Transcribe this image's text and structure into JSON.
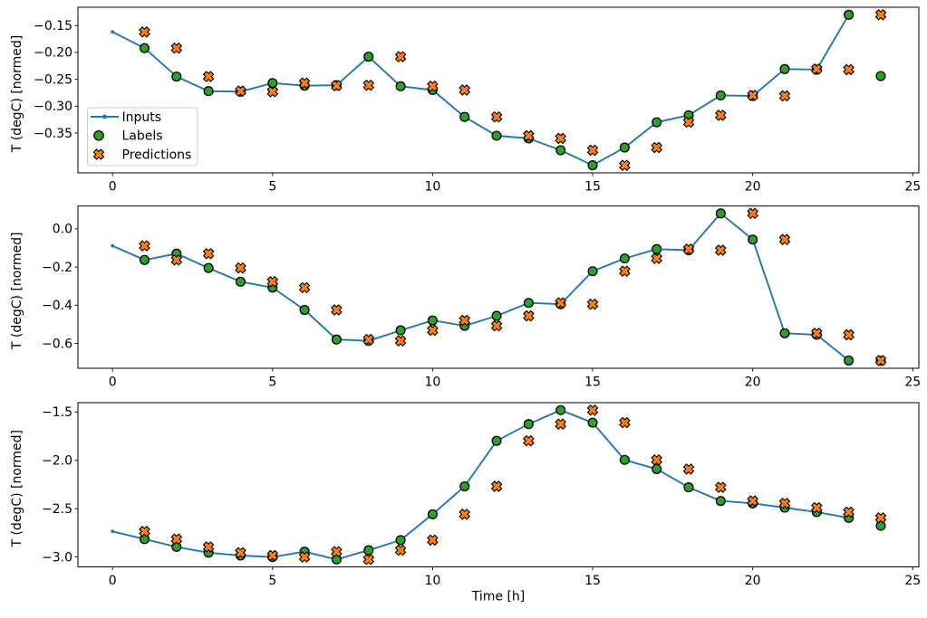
{
  "figure": {
    "xlabel": "Time [h]",
    "background": "#ffffff",
    "legend": {
      "items": [
        {
          "label": "Inputs",
          "handle": "line-dot",
          "color": "#1f77b4"
        },
        {
          "label": "Labels",
          "handle": "circle",
          "color": "#2ca02c"
        },
        {
          "label": "Predictions",
          "handle": "x-marker",
          "color": "#ff7f0e"
        }
      ],
      "border_color": "#cccccc",
      "background": "#ffffff"
    }
  },
  "chart_data": [
    {
      "type": "line+scatter",
      "ylabel": "T (degC) [normed]",
      "ytick_values": [
        -0.15,
        -0.2,
        -0.25,
        -0.3,
        -0.35
      ],
      "ytick_labels": [
        "−0.15",
        "−0.20",
        "−0.25",
        "−0.30",
        "−0.35"
      ],
      "xtick_values": [
        0,
        5,
        10,
        15,
        20,
        25
      ],
      "xtick_labels": [
        "0",
        "5",
        "10",
        "15",
        "20",
        "25"
      ],
      "series": [
        {
          "name": "Inputs",
          "type": "line",
          "marker": "dot",
          "color": "#1f77b4",
          "x": [
            0,
            1,
            2,
            3,
            4,
            5,
            6,
            7,
            8,
            9,
            10,
            11,
            12,
            13,
            14,
            15,
            16,
            17,
            18,
            19,
            20,
            21,
            22,
            23
          ],
          "y": [
            -0.162,
            -0.192,
            -0.245,
            -0.272,
            -0.273,
            -0.257,
            -0.262,
            -0.261,
            -0.208,
            -0.263,
            -0.27,
            -0.32,
            -0.355,
            -0.36,
            -0.382,
            -0.41,
            -0.377,
            -0.33,
            -0.317,
            -0.28,
            -0.281,
            -0.231,
            -0.232,
            -0.13
          ]
        },
        {
          "name": "Labels",
          "type": "scatter",
          "marker": "circle",
          "color": "#2ca02c",
          "x": [
            1,
            2,
            3,
            4,
            5,
            6,
            7,
            8,
            9,
            10,
            11,
            12,
            13,
            14,
            15,
            16,
            17,
            18,
            19,
            20,
            21,
            22,
            23,
            24
          ],
          "y": [
            -0.192,
            -0.245,
            -0.272,
            -0.273,
            -0.257,
            -0.262,
            -0.261,
            -0.208,
            -0.263,
            -0.27,
            -0.32,
            -0.355,
            -0.36,
            -0.382,
            -0.41,
            -0.377,
            -0.33,
            -0.317,
            -0.28,
            -0.281,
            -0.231,
            -0.232,
            -0.13,
            -0.244
          ]
        },
        {
          "name": "Predictions",
          "type": "scatter",
          "marker": "X",
          "color": "#ff7f0e",
          "x": [
            1,
            2,
            3,
            4,
            5,
            6,
            7,
            8,
            9,
            10,
            11,
            12,
            13,
            14,
            15,
            16,
            17,
            18,
            19,
            20,
            21,
            22,
            23,
            24
          ],
          "y": [
            -0.162,
            -0.192,
            -0.245,
            -0.272,
            -0.273,
            -0.257,
            -0.262,
            -0.261,
            -0.208,
            -0.263,
            -0.27,
            -0.32,
            -0.355,
            -0.36,
            -0.382,
            -0.41,
            -0.377,
            -0.33,
            -0.317,
            -0.28,
            -0.281,
            -0.231,
            -0.232,
            -0.13
          ]
        }
      ]
    },
    {
      "type": "line+scatter",
      "ylabel": "T (degC) [normed]",
      "ytick_values": [
        0.0,
        -0.2,
        -0.4,
        -0.6
      ],
      "ytick_labels": [
        "0.0",
        "−0.2",
        "−0.4",
        "−0.6"
      ],
      "xtick_values": [
        0,
        5,
        10,
        15,
        20,
        25
      ],
      "xtick_labels": [
        "0",
        "5",
        "10",
        "15",
        "20",
        "25"
      ],
      "series": [
        {
          "name": "Inputs",
          "type": "line",
          "marker": "dot",
          "color": "#1f77b4",
          "x": [
            0,
            1,
            2,
            3,
            4,
            5,
            6,
            7,
            8,
            9,
            10,
            11,
            12,
            13,
            14,
            15,
            16,
            17,
            18,
            19,
            20,
            21,
            22,
            23
          ],
          "y": [
            -0.089,
            -0.163,
            -0.13,
            -0.205,
            -0.277,
            -0.308,
            -0.425,
            -0.58,
            -0.587,
            -0.532,
            -0.48,
            -0.508,
            -0.456,
            -0.388,
            -0.395,
            -0.222,
            -0.155,
            -0.106,
            -0.112,
            0.081,
            -0.056,
            -0.547,
            -0.555,
            -0.69
          ]
        },
        {
          "name": "Labels",
          "type": "scatter",
          "marker": "circle",
          "color": "#2ca02c",
          "x": [
            1,
            2,
            3,
            4,
            5,
            6,
            7,
            8,
            9,
            10,
            11,
            12,
            13,
            14,
            15,
            16,
            17,
            18,
            19,
            20,
            21,
            22,
            23,
            24
          ],
          "y": [
            -0.163,
            -0.13,
            -0.205,
            -0.277,
            -0.308,
            -0.425,
            -0.58,
            -0.587,
            -0.532,
            -0.48,
            -0.508,
            -0.456,
            -0.388,
            -0.395,
            -0.222,
            -0.155,
            -0.106,
            -0.112,
            0.081,
            -0.056,
            -0.547,
            -0.555,
            -0.69,
            -0.692
          ]
        },
        {
          "name": "Predictions",
          "type": "scatter",
          "marker": "X",
          "color": "#ff7f0e",
          "x": [
            1,
            2,
            3,
            4,
            5,
            6,
            7,
            8,
            9,
            10,
            11,
            12,
            13,
            14,
            15,
            16,
            17,
            18,
            19,
            20,
            21,
            22,
            23,
            24
          ],
          "y": [
            -0.089,
            -0.163,
            -0.13,
            -0.205,
            -0.277,
            -0.308,
            -0.425,
            -0.58,
            -0.587,
            -0.532,
            -0.48,
            -0.508,
            -0.456,
            -0.388,
            -0.395,
            -0.222,
            -0.155,
            -0.106,
            -0.112,
            0.081,
            -0.056,
            -0.547,
            -0.555,
            -0.69
          ]
        }
      ]
    },
    {
      "type": "line+scatter",
      "ylabel": "T (degC) [normed]",
      "ytick_values": [
        -1.5,
        -2.0,
        -2.5,
        -3.0
      ],
      "ytick_labels": [
        "−1.5",
        "−2.0",
        "−2.5",
        "−3.0"
      ],
      "xtick_values": [
        0,
        5,
        10,
        15,
        20,
        25
      ],
      "xtick_labels": [
        "0",
        "5",
        "10",
        "15",
        "20",
        "25"
      ],
      "series": [
        {
          "name": "Inputs",
          "type": "line",
          "marker": "dot",
          "color": "#1f77b4",
          "x": [
            0,
            1,
            2,
            3,
            4,
            5,
            6,
            7,
            8,
            9,
            10,
            11,
            12,
            13,
            14,
            15,
            16,
            17,
            18,
            19,
            20,
            21,
            22,
            23
          ],
          "y": [
            -2.735,
            -2.815,
            -2.895,
            -2.955,
            -2.985,
            -3.0,
            -2.945,
            -3.025,
            -2.93,
            -2.825,
            -2.558,
            -2.269,
            -1.798,
            -1.625,
            -1.48,
            -1.61,
            -1.995,
            -2.09,
            -2.279,
            -2.42,
            -2.445,
            -2.49,
            -2.535,
            -2.595
          ]
        },
        {
          "name": "Labels",
          "type": "scatter",
          "marker": "circle",
          "color": "#2ca02c",
          "x": [
            1,
            2,
            3,
            4,
            5,
            6,
            7,
            8,
            9,
            10,
            11,
            12,
            13,
            14,
            15,
            16,
            17,
            18,
            19,
            20,
            21,
            22,
            23,
            24
          ],
          "y": [
            -2.815,
            -2.895,
            -2.955,
            -2.985,
            -3.0,
            -2.945,
            -3.025,
            -2.93,
            -2.825,
            -2.558,
            -2.269,
            -1.798,
            -1.625,
            -1.48,
            -1.61,
            -1.995,
            -2.09,
            -2.279,
            -2.42,
            -2.445,
            -2.49,
            -2.535,
            -2.595,
            -2.677
          ]
        },
        {
          "name": "Predictions",
          "type": "scatter",
          "marker": "X",
          "color": "#ff7f0e",
          "x": [
            1,
            2,
            3,
            4,
            5,
            6,
            7,
            8,
            9,
            10,
            11,
            12,
            13,
            14,
            15,
            16,
            17,
            18,
            19,
            20,
            21,
            22,
            23,
            24
          ],
          "y": [
            -2.735,
            -2.815,
            -2.895,
            -2.955,
            -2.985,
            -3.0,
            -2.945,
            -3.025,
            -2.93,
            -2.825,
            -2.558,
            -2.269,
            -1.798,
            -1.625,
            -1.48,
            -1.61,
            -1.995,
            -2.09,
            -2.279,
            -2.42,
            -2.445,
            -2.49,
            -2.535,
            -2.595
          ]
        }
      ]
    }
  ]
}
